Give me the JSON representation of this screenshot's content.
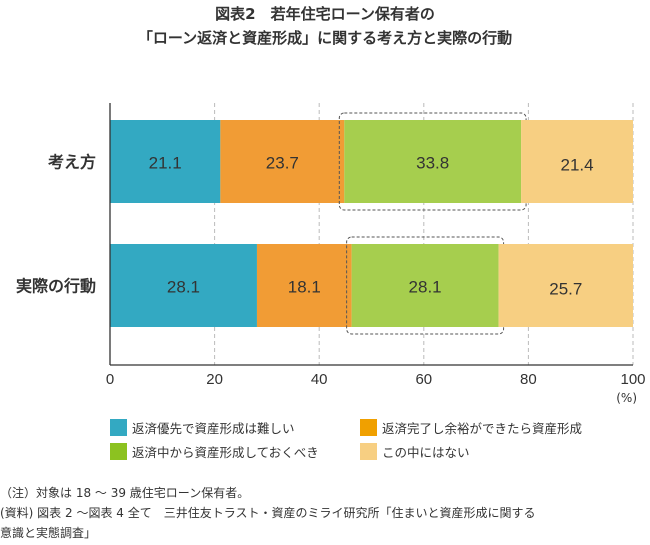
{
  "chart_data": {
    "type": "bar",
    "orientation": "horizontal",
    "stacked": true,
    "title": "図表2　若年住宅ローン保有者の",
    "subtitle": "「ローン返済と資産形成」に関する考え方と実際の行動",
    "categories": [
      "考え方",
      "実際の行動"
    ],
    "series": [
      {
        "name": "返済優先で資産形成は難しい",
        "color": "#33A9C2",
        "legend_color": "#33A9C2",
        "values": [
          21.1,
          28.1
        ]
      },
      {
        "name": "返済完了し余裕ができたら資産形成",
        "color": "#F19C35",
        "legend_color": "#F0A000",
        "values": [
          23.7,
          18.1
        ]
      },
      {
        "name": "返済中から資産形成しておくべき",
        "color": "#A6CE4E",
        "legend_color": "#8CC220",
        "values": [
          33.8,
          28.1
        ]
      },
      {
        "name": "この中にはない",
        "color": "#F7CF82",
        "legend_color": "#F7CF82",
        "values": [
          21.4,
          25.7
        ]
      }
    ],
    "xlim": [
      0,
      100
    ],
    "xticks": [
      "0",
      "20",
      "40",
      "60",
      "80",
      "100"
    ],
    "xunit": "(%)",
    "highlight_series": 2,
    "grid": true,
    "legend": "bottom"
  },
  "notes": [
    "（注）対象は 18 ～ 39 歳住宅ローン保有者。",
    "(資料) 図表 2 ～図表 4 全て　三井住友トラスト・資産のミライ研究所「住まいと資産形成に関する",
    "意識と実態調査」"
  ]
}
